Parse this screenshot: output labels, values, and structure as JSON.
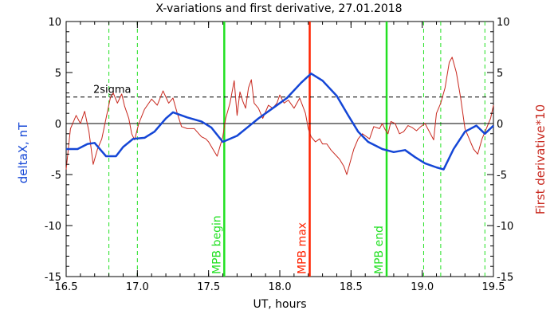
{
  "chart_data": {
    "type": "line",
    "title": "X-variations and first derivative, 27.01.2018",
    "xlabel": "UT, hours",
    "ylabel_left": "deltaX, nT",
    "ylabel_right": "First derivative*10",
    "xlim": [
      16.5,
      19.5
    ],
    "ylim": [
      -15,
      10
    ],
    "xticks": [
      "16.5",
      "17.0",
      "17.5",
      "18.0",
      "18.5",
      "19.0",
      "19.5"
    ],
    "yticks_left": [
      "-15",
      "-10",
      "-5",
      "0",
      "5",
      "10"
    ],
    "yticks_right": [
      "-15",
      "-10",
      "-5",
      "0",
      "5",
      "10"
    ],
    "grid": false,
    "colors": {
      "deltaX": "#1446d6",
      "derivative": "#c8281e",
      "mpb_bounds": "#22e022",
      "mpb_max": "#ff2200",
      "axis": "#000000"
    },
    "sigma_label": "2sigma",
    "sigma_level": 2.6,
    "zero_line": 0,
    "series": [
      {
        "key": "deltaX",
        "points": [
          [
            16.5,
            -2.5
          ],
          [
            16.58,
            -2.5
          ],
          [
            16.65,
            -2.0
          ],
          [
            16.7,
            -1.9
          ],
          [
            16.78,
            -3.2
          ],
          [
            16.85,
            -3.2
          ],
          [
            16.9,
            -2.3
          ],
          [
            16.97,
            -1.5
          ],
          [
            17.05,
            -1.4
          ],
          [
            17.12,
            -0.8
          ],
          [
            17.2,
            0.5
          ],
          [
            17.25,
            1.1
          ],
          [
            17.35,
            0.6
          ],
          [
            17.45,
            0.2
          ],
          [
            17.52,
            -0.4
          ],
          [
            17.6,
            -1.8
          ],
          [
            17.7,
            -1.2
          ],
          [
            17.78,
            -0.3
          ],
          [
            17.85,
            0.5
          ],
          [
            17.95,
            1.5
          ],
          [
            18.05,
            2.5
          ],
          [
            18.15,
            4.0
          ],
          [
            18.22,
            4.9
          ],
          [
            18.3,
            4.2
          ],
          [
            18.4,
            2.7
          ],
          [
            18.48,
            0.8
          ],
          [
            18.55,
            -0.8
          ],
          [
            18.62,
            -1.8
          ],
          [
            18.72,
            -2.5
          ],
          [
            18.8,
            -2.8
          ],
          [
            18.88,
            -2.6
          ],
          [
            18.95,
            -3.3
          ],
          [
            19.02,
            -3.9
          ],
          [
            19.1,
            -4.3
          ],
          [
            19.15,
            -4.5
          ],
          [
            19.22,
            -2.5
          ],
          [
            19.3,
            -0.8
          ],
          [
            19.38,
            -0.2
          ],
          [
            19.44,
            -1.0
          ],
          [
            19.5,
            -0.2
          ]
        ]
      },
      {
        "key": "derivative",
        "points": [
          [
            16.5,
            -4.5
          ],
          [
            16.53,
            -0.5
          ],
          [
            16.57,
            0.8
          ],
          [
            16.6,
            0.0
          ],
          [
            16.63,
            1.2
          ],
          [
            16.66,
            -0.8
          ],
          [
            16.69,
            -4.0
          ],
          [
            16.72,
            -2.5
          ],
          [
            16.75,
            -1.5
          ],
          [
            16.78,
            0.5
          ],
          [
            16.81,
            2.5
          ],
          [
            16.83,
            3.0
          ],
          [
            16.86,
            2.0
          ],
          [
            16.89,
            2.9
          ],
          [
            16.91,
            1.7
          ],
          [
            16.94,
            0.5
          ],
          [
            16.96,
            -1.0
          ],
          [
            16.98,
            -1.6
          ],
          [
            17.01,
            0.0
          ],
          [
            17.05,
            1.4
          ],
          [
            17.1,
            2.4
          ],
          [
            17.14,
            1.8
          ],
          [
            17.18,
            3.2
          ],
          [
            17.22,
            2.0
          ],
          [
            17.25,
            2.5
          ],
          [
            17.28,
            1.0
          ],
          [
            17.31,
            -0.3
          ],
          [
            17.35,
            -0.5
          ],
          [
            17.4,
            -0.5
          ],
          [
            17.45,
            -1.3
          ],
          [
            17.48,
            -1.5
          ],
          [
            17.5,
            -1.8
          ],
          [
            17.53,
            -2.5
          ],
          [
            17.56,
            -3.2
          ],
          [
            17.6,
            -1.3
          ],
          [
            17.62,
            0.5
          ],
          [
            17.65,
            2.0
          ],
          [
            17.68,
            4.2
          ],
          [
            17.7,
            0.8
          ],
          [
            17.72,
            3.1
          ],
          [
            17.74,
            2.2
          ],
          [
            17.76,
            1.5
          ],
          [
            17.78,
            3.5
          ],
          [
            17.8,
            4.3
          ],
          [
            17.82,
            2.0
          ],
          [
            17.85,
            1.5
          ],
          [
            17.88,
            0.5
          ],
          [
            17.92,
            1.8
          ],
          [
            17.95,
            1.5
          ],
          [
            17.98,
            2.0
          ],
          [
            18.0,
            2.8
          ],
          [
            18.03,
            2.0
          ],
          [
            18.06,
            2.3
          ],
          [
            18.1,
            1.5
          ],
          [
            18.14,
            2.5
          ],
          [
            18.18,
            1.0
          ],
          [
            18.2,
            -0.5
          ],
          [
            18.22,
            -1.3
          ],
          [
            18.25,
            -1.8
          ],
          [
            18.28,
            -1.5
          ],
          [
            18.3,
            -2.0
          ],
          [
            18.33,
            -2.0
          ],
          [
            18.36,
            -2.6
          ],
          [
            18.4,
            -3.2
          ],
          [
            18.42,
            -3.5
          ],
          [
            18.45,
            -4.2
          ],
          [
            18.47,
            -5.0
          ],
          [
            18.5,
            -3.5
          ],
          [
            18.52,
            -2.5
          ],
          [
            18.55,
            -1.5
          ],
          [
            18.58,
            -1.0
          ],
          [
            18.6,
            -1.2
          ],
          [
            18.63,
            -1.5
          ],
          [
            18.66,
            -0.3
          ],
          [
            18.7,
            -0.5
          ],
          [
            18.72,
            0.0
          ],
          [
            18.74,
            -0.6
          ],
          [
            18.76,
            -1.0
          ],
          [
            18.78,
            0.2
          ],
          [
            18.81,
            0.0
          ],
          [
            18.84,
            -1.0
          ],
          [
            18.87,
            -0.8
          ],
          [
            18.9,
            -0.2
          ],
          [
            18.93,
            -0.4
          ],
          [
            18.96,
            -0.7
          ],
          [
            18.99,
            -0.3
          ],
          [
            19.02,
            0.0
          ],
          [
            19.05,
            -0.8
          ],
          [
            19.08,
            -1.6
          ],
          [
            19.1,
            1.0
          ],
          [
            19.13,
            2.0
          ],
          [
            19.16,
            3.5
          ],
          [
            19.19,
            6.0
          ],
          [
            19.21,
            6.5
          ],
          [
            19.24,
            5.0
          ],
          [
            19.27,
            2.5
          ],
          [
            19.3,
            -0.5
          ],
          [
            19.33,
            -1.5
          ],
          [
            19.36,
            -2.5
          ],
          [
            19.39,
            -3.0
          ],
          [
            19.42,
            -1.5
          ],
          [
            19.45,
            -0.5
          ],
          [
            19.48,
            0.5
          ],
          [
            19.5,
            1.8
          ]
        ]
      }
    ],
    "vlines": [
      {
        "x": 16.8,
        "style": "dashed",
        "color_key": "mpb_bounds"
      },
      {
        "x": 17.0,
        "style": "dashed",
        "color_key": "mpb_bounds"
      },
      {
        "x": 17.61,
        "style": "solid",
        "color_key": "mpb_bounds",
        "label": "MPB begin"
      },
      {
        "x": 18.21,
        "style": "solid",
        "color_key": "mpb_max",
        "label": "MPB max"
      },
      {
        "x": 18.75,
        "style": "solid",
        "color_key": "mpb_bounds",
        "label": "MPB end"
      },
      {
        "x": 19.01,
        "style": "dashed",
        "color_key": "mpb_bounds"
      },
      {
        "x": 19.13,
        "style": "dashed",
        "color_key": "mpb_bounds"
      },
      {
        "x": 19.44,
        "style": "dashed",
        "color_key": "mpb_bounds"
      }
    ]
  }
}
